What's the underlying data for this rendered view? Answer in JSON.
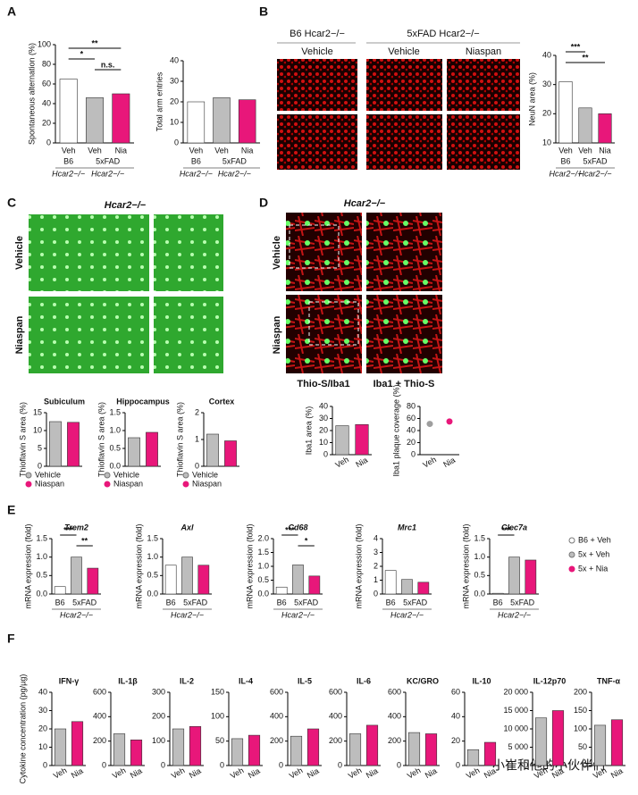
{
  "figure": {
    "panels": [
      "A",
      "B",
      "C",
      "D",
      "E",
      "F"
    ],
    "B_groups": [
      "B6 Hcar2−/−",
      "5xFAD  Hcar2−/−"
    ],
    "B_images": [
      "Vehicle",
      "Vehicle",
      "Niaspan"
    ],
    "C_title": "Hcar2−/−",
    "C_rows": [
      "Vehicle",
      "Niaspan"
    ],
    "D_title": "Hcar2−/−",
    "D_rows": [
      "Vehicle",
      "Niaspan"
    ],
    "D_captions": [
      "Thio-S/Iba1",
      "Iba1 + Thio-S"
    ],
    "watermark": "小崔和他的小伙伴们"
  },
  "chart_data": [
    {
      "type": "bar",
      "ylabel": "Spontaneous alternation (%)",
      "categories": [
        "Veh",
        "Veh",
        "Nia"
      ],
      "values": [
        65,
        46,
        50
      ],
      "colors": [
        "#ffffff",
        "#bdbdbd",
        "#e8177a"
      ],
      "ylim": [
        0,
        100
      ],
      "yticks": [
        0,
        20,
        40,
        60,
        80,
        100
      ],
      "groups": [
        "B6",
        "5xFAD"
      ],
      "group_sub": "Hcar2−/−",
      "annotations": [
        "**",
        "*",
        "n.s."
      ]
    },
    {
      "type": "bar",
      "ylabel": "Total arm entries",
      "categories": [
        "Veh",
        "Veh",
        "Nia"
      ],
      "values": [
        20,
        22,
        21
      ],
      "colors": [
        "#ffffff",
        "#bdbdbd",
        "#e8177a"
      ],
      "ylim": [
        0,
        40
      ],
      "yticks": [
        0,
        10,
        20,
        30,
        40
      ],
      "groups": [
        "B6",
        "5xFAD"
      ],
      "group_sub": "Hcar2−/−"
    },
    {
      "type": "bar",
      "ylabel": "NeuN area (%)",
      "categories": [
        "Veh",
        "Veh",
        "Nia"
      ],
      "values": [
        31,
        22,
        20
      ],
      "colors": [
        "#ffffff",
        "#bdbdbd",
        "#e8177a"
      ],
      "ylim": [
        10,
        40
      ],
      "yticks": [
        10,
        20,
        30,
        40
      ],
      "groups": [
        "B6",
        "5xFAD"
      ],
      "group_sub": "Hcar2−/−",
      "annotations": [
        "***",
        "**"
      ]
    },
    {
      "type": "bar",
      "title": "Subiculum",
      "ylabel": "Thioflavin S area  (%)",
      "values": [
        12.5,
        12.3
      ],
      "colors": [
        "#bdbdbd",
        "#e8177a"
      ],
      "ylim": [
        0,
        15
      ],
      "yticks": [
        0,
        5,
        10,
        15
      ],
      "legend_labels": [
        "Vehicle",
        "Niaspan"
      ]
    },
    {
      "type": "bar",
      "title": "Hippocampus",
      "ylabel": "Thioflavin S area  (%)",
      "values": [
        0.8,
        0.95
      ],
      "colors": [
        "#bdbdbd",
        "#e8177a"
      ],
      "ylim": [
        0,
        1.5
      ],
      "yticks": [
        {
          "value": 0,
          "label": "0.0"
        },
        0.5,
        {
          "value": 1,
          "label": "1.0"
        },
        1.5
      ],
      "legend_labels": [
        "Vehicle",
        "Niaspan"
      ]
    },
    {
      "type": "bar",
      "title": "Cortex",
      "ylabel": "Thioflavin S area  (%)",
      "values": [
        1.2,
        0.95
      ],
      "colors": [
        "#bdbdbd",
        "#e8177a"
      ],
      "ylim": [
        0,
        2
      ],
      "yticks": [
        0,
        1,
        2
      ],
      "legend_labels": [
        "Vehicle",
        "Niaspan"
      ]
    },
    {
      "type": "bar",
      "ylabel": "Iba1 area (%)",
      "categories": [
        "Veh",
        "Nia"
      ],
      "values": [
        24,
        25
      ],
      "colors": [
        "#bdbdbd",
        "#e8177a"
      ],
      "ylim": [
        0,
        40
      ],
      "yticks": [
        0,
        10,
        20,
        30,
        40
      ]
    },
    {
      "type": "dot",
      "ylabel": "Iba1 plaque coverage (%)",
      "categories": [
        "Veh",
        "Nia"
      ],
      "values": [
        51,
        55
      ],
      "colors": [
        "#9e9e9e",
        "#e8177a"
      ],
      "ylim": [
        0,
        80
      ],
      "yticks": [
        0,
        20,
        40,
        60,
        80
      ]
    },
    {
      "type": "bar",
      "title": "Trem2",
      "ylabel": "mRNA expression (fold)",
      "values": [
        0.2,
        1.0,
        0.7
      ],
      "colors": [
        "#ffffff",
        "#bdbdbd",
        "#e8177a"
      ],
      "ylim": [
        0,
        1.5
      ],
      "yticks": [
        {
          "value": 0,
          "label": "0.0"
        },
        0.5,
        {
          "value": 1,
          "label": "1.0"
        },
        1.5
      ],
      "groups": [
        "B6",
        "5xFAD"
      ],
      "group_sub": "Hcar2−/−",
      "annotations": [
        "***",
        "**"
      ]
    },
    {
      "type": "bar",
      "title": "Axl",
      "ylabel": "mRNA expression (fold)",
      "values": [
        0.78,
        1.0,
        0.78
      ],
      "colors": [
        "#ffffff",
        "#bdbdbd",
        "#e8177a"
      ],
      "ylim": [
        0,
        1.5
      ],
      "yticks": [
        {
          "value": 0,
          "label": "0.0"
        },
        0.5,
        {
          "value": 1,
          "label": "1.0"
        },
        1.5
      ],
      "groups": [
        "B6",
        "5xFAD"
      ],
      "group_sub": "Hcar2−/−"
    },
    {
      "type": "bar",
      "title": "Cd68",
      "ylabel": "mRNA expression (fold)",
      "values": [
        0.25,
        1.05,
        0.65
      ],
      "colors": [
        "#ffffff",
        "#bdbdbd",
        "#e8177a"
      ],
      "ylim": [
        0,
        2
      ],
      "yticks": [
        {
          "value": 0,
          "label": "0.0"
        },
        0.5,
        {
          "value": 1,
          "label": "1.0"
        },
        1.5,
        {
          "value": 2,
          "label": "2.0"
        }
      ],
      "groups": [
        "B6",
        "5xFAD"
      ],
      "group_sub": "Hcar2−/−",
      "annotations": [
        "***",
        "*"
      ]
    },
    {
      "type": "bar",
      "title": "Mrc1",
      "ylabel": "mRNA expression (fold)",
      "values": [
        1.7,
        1.05,
        0.85
      ],
      "colors": [
        "#ffffff",
        "#bdbdbd",
        "#e8177a"
      ],
      "ylim": [
        0,
        4
      ],
      "yticks": [
        0,
        1,
        2,
        3,
        4
      ],
      "groups": [
        "B6",
        "5xFAD"
      ],
      "group_sub": "Hcar2−/−"
    },
    {
      "type": "bar",
      "title": "Clec7a",
      "ylabel": "mRNA expression (fold)",
      "values": [
        0.02,
        1.0,
        0.92
      ],
      "colors": [
        "#ffffff",
        "#bdbdbd",
        "#e8177a"
      ],
      "ylim": [
        0,
        1.5
      ],
      "yticks": [
        {
          "value": 0,
          "label": "0.0"
        },
        0.5,
        {
          "value": 1,
          "label": "1.0"
        },
        1.5
      ],
      "groups": [
        "B6",
        "5xFAD"
      ],
      "group_sub": "Hcar2−/−",
      "annotations": [
        "***"
      ],
      "legend_labels": [
        "B6 + Veh",
        "5x + Veh",
        "5x + Nia"
      ]
    },
    {
      "type": "bar",
      "title": "IFN-γ",
      "ylabel": "Cytokine concentration (pg/µg)",
      "categories": [
        "Veh",
        "Nia"
      ],
      "values": [
        20,
        24
      ],
      "colors": [
        "#bdbdbd",
        "#e8177a"
      ],
      "ylim": [
        0,
        40
      ],
      "yticks": [
        0,
        10,
        20,
        30,
        40
      ]
    },
    {
      "type": "bar",
      "title": "IL-1β",
      "categories": [
        "Veh",
        "Nia"
      ],
      "values": [
        260,
        210
      ],
      "colors": [
        "#bdbdbd",
        "#e8177a"
      ],
      "ylim": [
        0,
        600
      ],
      "yticks": [
        0,
        200,
        400,
        600
      ]
    },
    {
      "type": "bar",
      "title": "IL-2",
      "categories": [
        "Veh",
        "Nia"
      ],
      "values": [
        150,
        160
      ],
      "colors": [
        "#bdbdbd",
        "#e8177a"
      ],
      "ylim": [
        0,
        300
      ],
      "yticks": [
        0,
        100,
        200,
        300
      ]
    },
    {
      "type": "bar",
      "title": "IL-4",
      "categories": [
        "Veh",
        "Nia"
      ],
      "values": [
        55,
        62
      ],
      "colors": [
        "#bdbdbd",
        "#e8177a"
      ],
      "ylim": [
        0,
        150
      ],
      "yticks": [
        0,
        50,
        100,
        150
      ]
    },
    {
      "type": "bar",
      "title": "IL-5",
      "categories": [
        "Veh",
        "Nia"
      ],
      "values": [
        240,
        300
      ],
      "colors": [
        "#bdbdbd",
        "#e8177a"
      ],
      "ylim": [
        0,
        600
      ],
      "yticks": [
        0,
        200,
        400,
        600
      ]
    },
    {
      "type": "bar",
      "title": "IL-6",
      "categories": [
        "Veh",
        "Nia"
      ],
      "values": [
        260,
        330
      ],
      "colors": [
        "#bdbdbd",
        "#e8177a"
      ],
      "ylim": [
        0,
        600
      ],
      "yticks": [
        0,
        200,
        400,
        600
      ]
    },
    {
      "type": "bar",
      "title": "KC/GRO",
      "categories": [
        "Veh",
        "Nia"
      ],
      "values": [
        270,
        260
      ],
      "colors": [
        "#bdbdbd",
        "#e8177a"
      ],
      "ylim": [
        0,
        600
      ],
      "yticks": [
        0,
        200,
        400,
        600
      ]
    },
    {
      "type": "bar",
      "title": "IL-10",
      "categories": [
        "Veh",
        "Nia"
      ],
      "values": [
        13,
        19
      ],
      "colors": [
        "#bdbdbd",
        "#e8177a"
      ],
      "ylim": [
        0,
        60
      ],
      "yticks": [
        0,
        20,
        40,
        60
      ]
    },
    {
      "type": "bar",
      "title": "IL-12p70",
      "categories": [
        "Veh",
        "Nia"
      ],
      "values": [
        13000,
        15000
      ],
      "colors": [
        "#bdbdbd",
        "#e8177a"
      ],
      "ylim": [
        0,
        20000
      ],
      "yticks": [
        0,
        {
          "value": 5000,
          "label": "5 000"
        },
        {
          "value": 10000,
          "label": "10 000"
        },
        {
          "value": 15000,
          "label": "15 000"
        },
        {
          "value": 20000,
          "label": "20 000"
        }
      ]
    },
    {
      "type": "bar",
      "title": "TNF-α",
      "categories": [
        "Veh",
        "Nia"
      ],
      "values": [
        110,
        125
      ],
      "colors": [
        "#bdbdbd",
        "#e8177a"
      ],
      "ylim": [
        0,
        200
      ],
      "yticks": [
        0,
        50,
        100,
        150,
        200
      ]
    }
  ]
}
